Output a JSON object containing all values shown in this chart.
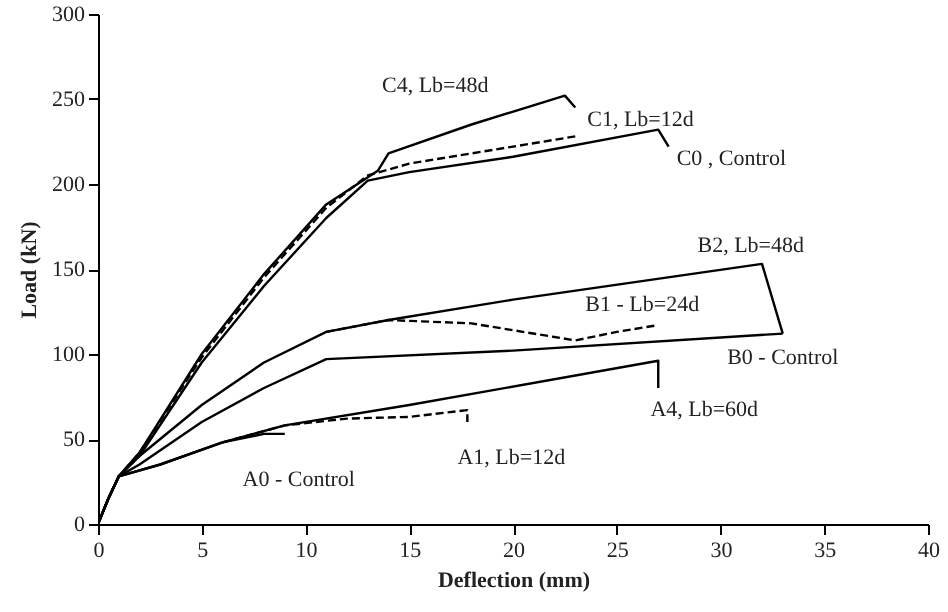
{
  "chart_data": {
    "type": "line",
    "xlabel": "Deflection (mm)",
    "ylabel": "Load (kN)",
    "xlim": [
      0,
      40
    ],
    "ylim": [
      0,
      300
    ],
    "xticks": [
      0,
      5,
      10,
      15,
      20,
      25,
      30,
      35,
      40
    ],
    "yticks": [
      0,
      50,
      100,
      150,
      200,
      250,
      300
    ],
    "grid": false,
    "marker": "none",
    "series": [
      {
        "name": "C4, Lb=48d",
        "color": "#000000",
        "line_style": "solid",
        "x": [
          0,
          0.5,
          1,
          2,
          5,
          8,
          11,
          13.5,
          14,
          18,
          22.5,
          23
        ],
        "values": [
          0,
          15,
          28,
          42,
          100,
          147,
          188,
          208,
          218,
          235,
          252,
          245
        ]
      },
      {
        "name": "C1, Lb=12d",
        "color": "#000000",
        "line_style": "dashed",
        "x": [
          0,
          0.5,
          1,
          2,
          5,
          8,
          11,
          13,
          15,
          20,
          23
        ],
        "values": [
          0,
          15,
          28,
          42,
          98,
          145,
          186,
          205,
          212,
          222,
          228
        ]
      },
      {
        "name": "C0 , Control",
        "color": "#000000",
        "line_style": "solid",
        "x": [
          0,
          0.5,
          1,
          2,
          5,
          8,
          11,
          13,
          15,
          20,
          27,
          27.5
        ],
        "values": [
          0,
          15,
          28,
          40,
          95,
          140,
          180,
          202,
          207,
          216,
          232,
          222
        ]
      },
      {
        "name": "B2, Lb=48d",
        "color": "#000000",
        "line_style": "solid",
        "x": [
          0,
          0.5,
          1,
          2,
          5,
          8,
          11,
          14,
          20,
          32,
          33
        ],
        "values": [
          0,
          15,
          28,
          40,
          70,
          95,
          113,
          120,
          132,
          153,
          112
        ]
      },
      {
        "name": "B1 - Lb=24d",
        "color": "#000000",
        "line_style": "dashed",
        "x": [
          11,
          14,
          18,
          20,
          22,
          23,
          25,
          27
        ],
        "values": [
          113,
          120,
          118,
          114,
          110,
          108,
          113,
          117
        ]
      },
      {
        "name": "B0 - Control",
        "color": "#000000",
        "line_style": "solid",
        "x": [
          0,
          0.5,
          1,
          2,
          5,
          8,
          11,
          20,
          33
        ],
        "values": [
          0,
          15,
          28,
          35,
          60,
          80,
          97,
          102,
          112
        ]
      },
      {
        "name": "A4, Lb=60d",
        "color": "#000000",
        "line_style": "solid",
        "x": [
          0,
          0.5,
          1,
          3,
          6,
          9,
          15,
          27,
          27
        ],
        "values": [
          0,
          15,
          28,
          35,
          48,
          58,
          70,
          96,
          80
        ]
      },
      {
        "name": "A1, Lb=12d",
        "color": "#000000",
        "line_style": "dashed",
        "x": [
          6,
          9,
          12,
          15,
          17.8,
          17.8
        ],
        "values": [
          48,
          58,
          62,
          63,
          67,
          60
        ]
      },
      {
        "name": "A0 - Control",
        "color": "#000000",
        "line_style": "solid",
        "x": [
          0,
          0.5,
          1,
          3,
          6,
          8,
          9
        ],
        "values": [
          0,
          15,
          28,
          35,
          48,
          53,
          53
        ]
      }
    ]
  }
}
